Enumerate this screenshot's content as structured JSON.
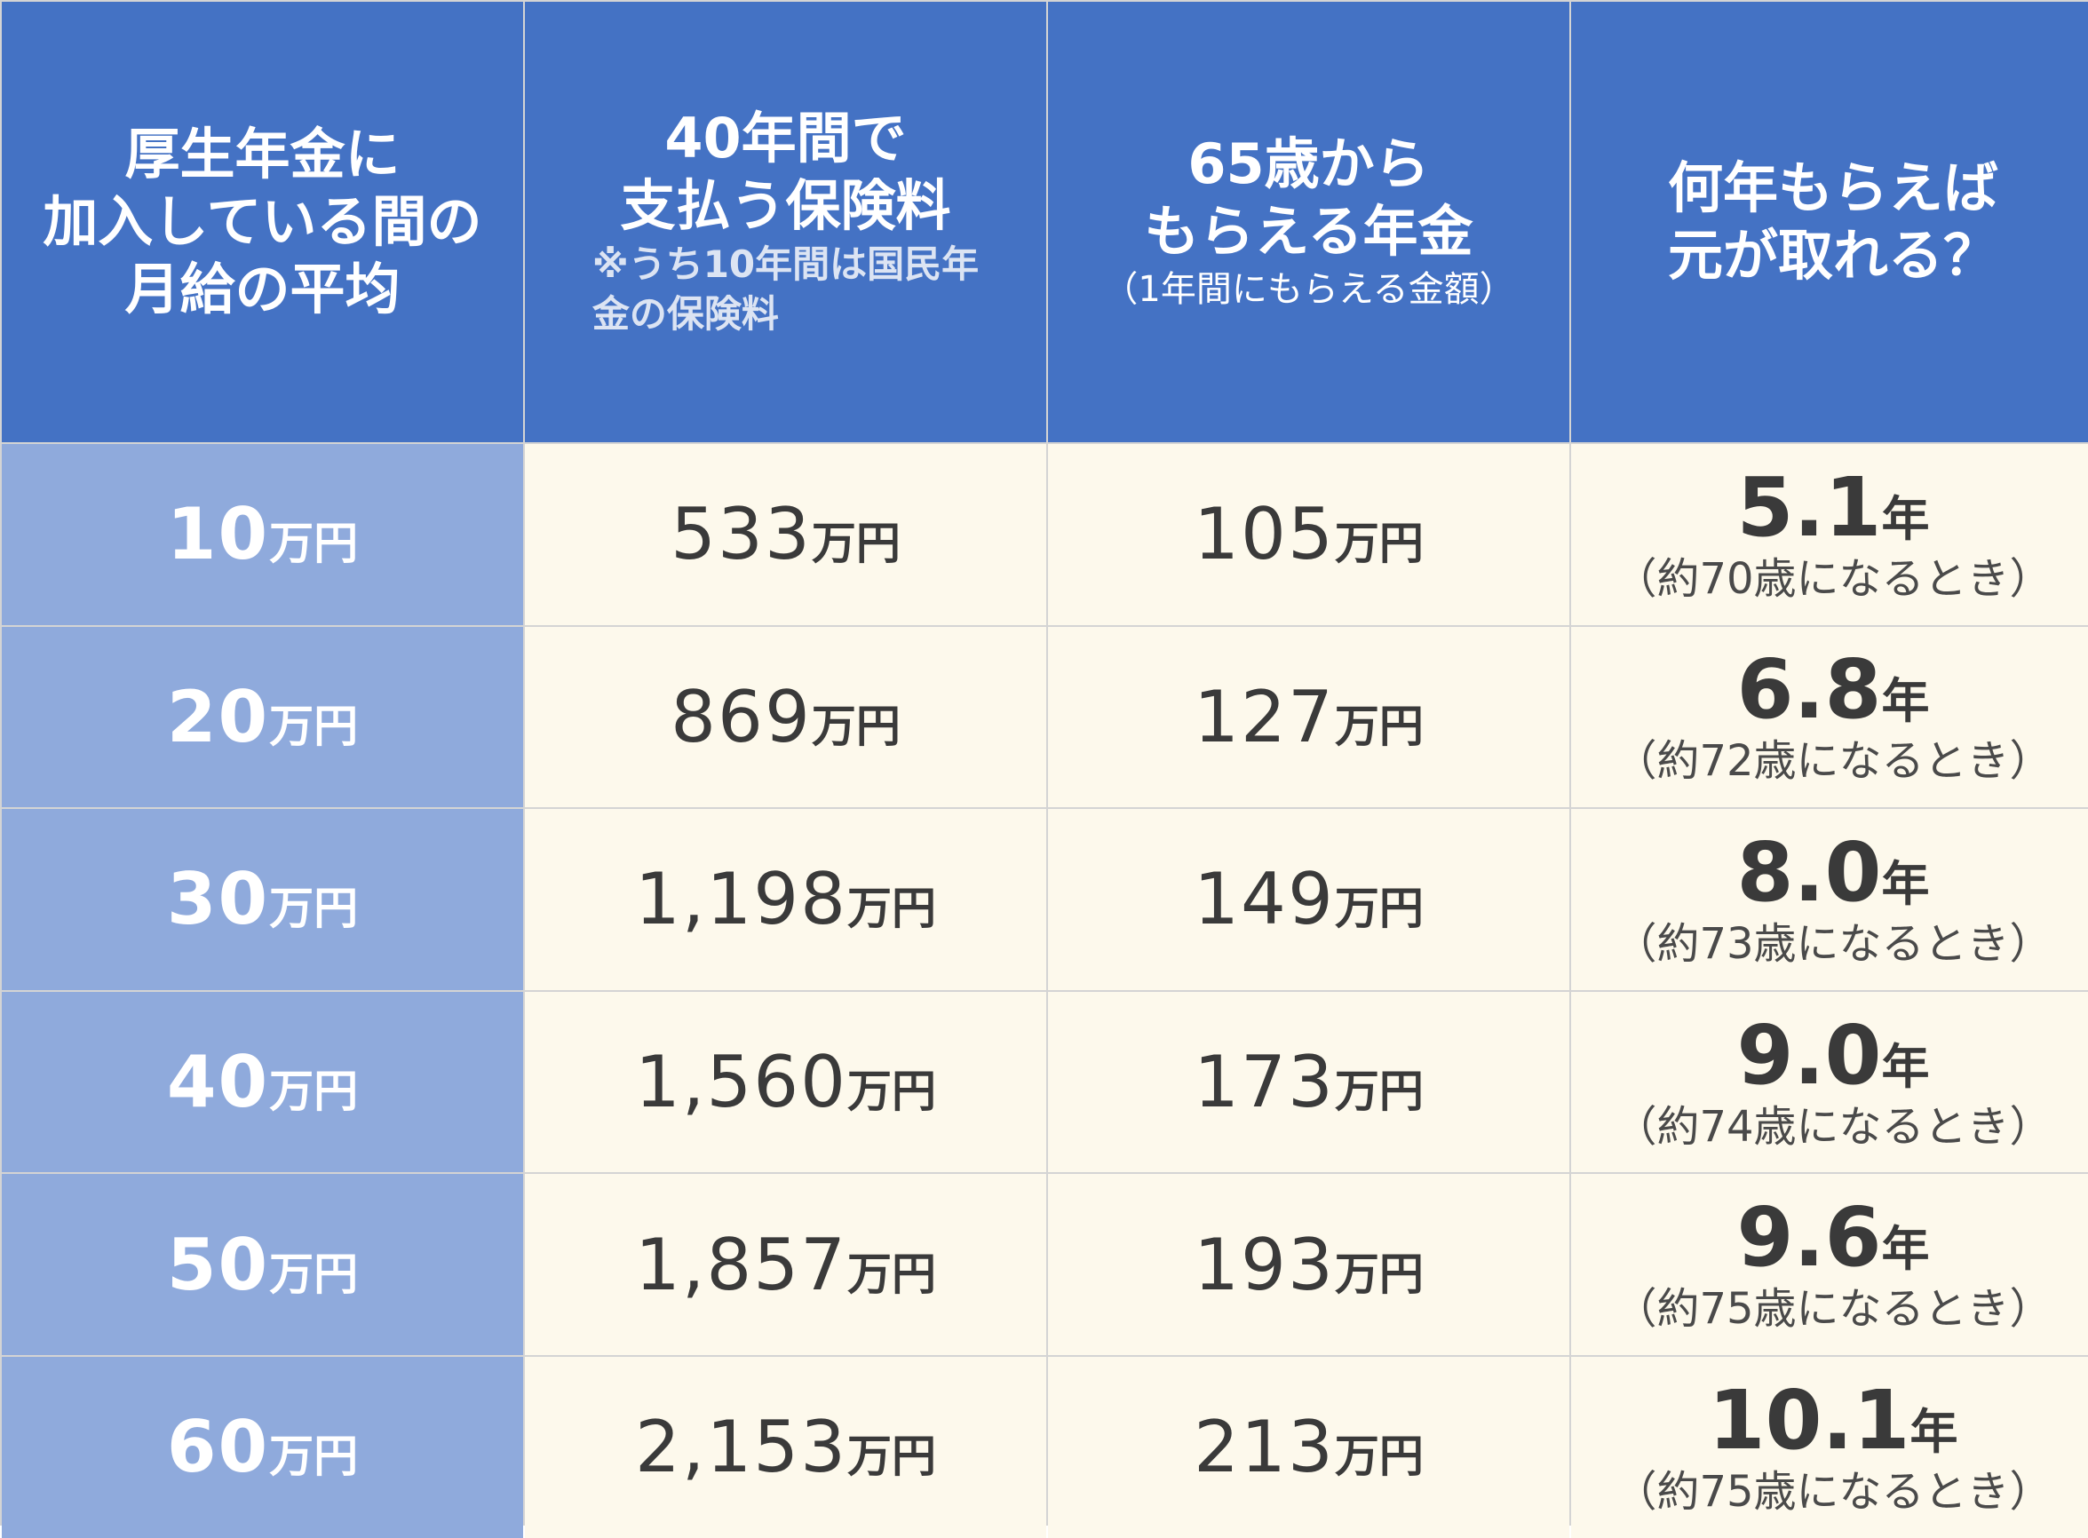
{
  "headers": {
    "col1": [
      "厚生年金に",
      "加入している間の",
      "月給の平均"
    ],
    "col2": [
      "40年間で",
      "支払う保険料"
    ],
    "col2_note": [
      "※うち10年間は国民年",
      "金の保険料"
    ],
    "col3": [
      "65歳から",
      "もらえる年金"
    ],
    "col3_sub": "（1年間にもらえる金額）",
    "col4": [
      "何年もらえば",
      "元が取れる？"
    ]
  },
  "units": {
    "man_en": "万円",
    "year": "年"
  },
  "rows": [
    {
      "salary": "10",
      "premium": "533",
      "pension": "105",
      "years": "5.1",
      "age": "（約70歳になるとき）"
    },
    {
      "salary": "20",
      "premium": "869",
      "pension": "127",
      "years": "6.8",
      "age": "（約72歳になるとき）"
    },
    {
      "salary": "30",
      "premium": "1,198",
      "pension": "149",
      "years": "8.0",
      "age": "（約73歳になるとき）"
    },
    {
      "salary": "40",
      "premium": "1,560",
      "pension": "173",
      "years": "9.0",
      "age": "（約74歳になるとき）"
    },
    {
      "salary": "50",
      "premium": "1,857",
      "pension": "193",
      "years": "9.6",
      "age": "（約75歳になるとき）"
    },
    {
      "salary": "60",
      "premium": "2,153",
      "pension": "213",
      "years": "10.1",
      "age": "（約75歳になるとき）"
    }
  ],
  "colors": {
    "header_bg": "#4472c4",
    "label_bg": "#8faadc",
    "body_bg": "#fdf9ec",
    "text": "#3a3a3a"
  }
}
